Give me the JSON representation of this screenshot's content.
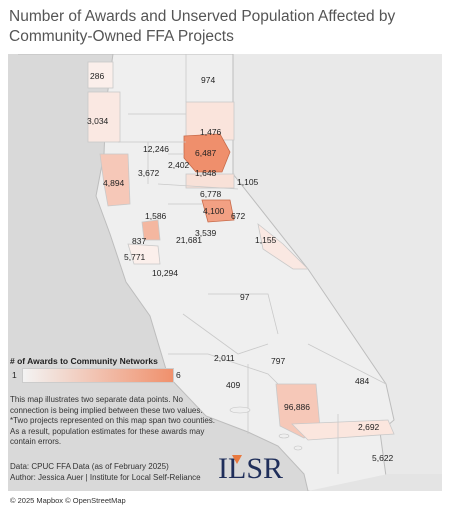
{
  "title": "Number of Awards and Unserved Population Affected by Community-Owned FFA Projects",
  "legend": {
    "title": "# of Awards to Community Networks",
    "min": "1",
    "max": "6",
    "color_min": "#f3f3f3",
    "color_max": "#f0906c"
  },
  "note": "This map illustrates two separate data points. No connection is being implied between these two values. *Two projects represented on this map span two counties. As a result, population estimates for these awards may contain errors.",
  "source": {
    "data": "Data: CPUC FFA Data (as of February 2025)",
    "author": "Author: Jessica Auer | Institute for Local Self-Reliance"
  },
  "credit": "© 2025 Mapbox © OpenStreetMap",
  "logo_text": "ILSR",
  "county_labels": [
    "286",
    "974",
    "3,034",
    "1,476",
    "12,246",
    "6,487",
    "3,672",
    "2,402",
    "4,894",
    "1,648",
    "1,105",
    "6,778",
    "1,586",
    "4,100",
    "672",
    "3,539",
    "837",
    "21,681",
    "1,155",
    "5,771",
    "10,294",
    "97",
    "2,011",
    "797",
    "484",
    "409",
    "96,886",
    "2,692",
    "5,622"
  ]
}
